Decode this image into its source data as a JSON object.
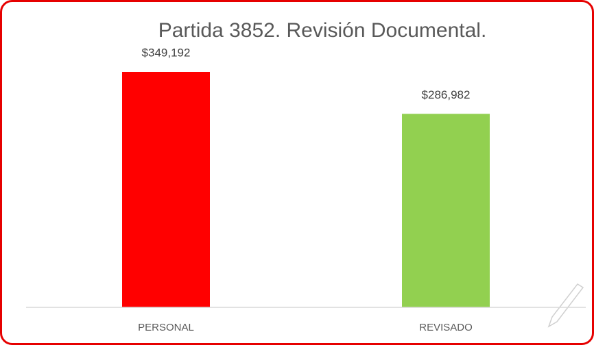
{
  "chart_data": {
    "type": "bar",
    "title": "Partida 3852. Revisión Documental.",
    "categories": [
      "PERSONAL",
      "REVISADO"
    ],
    "values": [
      349192,
      286982
    ],
    "value_labels": [
      "$349,192",
      "$286,982"
    ],
    "colors": [
      "#ff0000",
      "#92d050"
    ]
  }
}
